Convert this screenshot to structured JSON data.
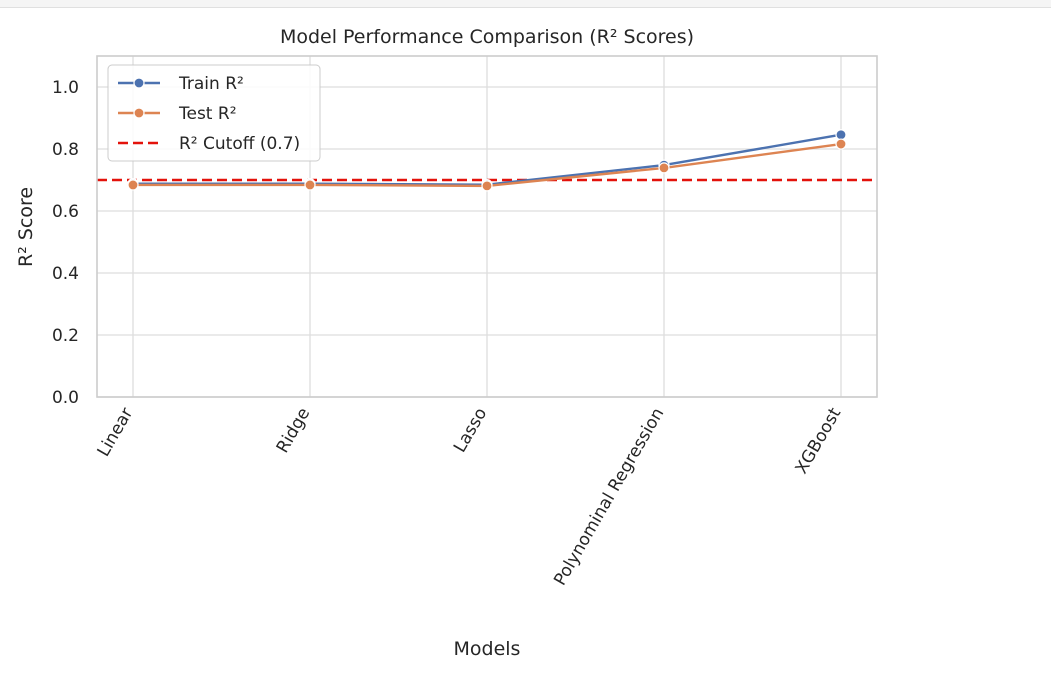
{
  "chart_data": {
    "type": "line",
    "title": "Model Performance Comparison (R² Scores)",
    "xlabel": "Models",
    "ylabel": "R² Score",
    "categories": [
      "Linear",
      "Ridge",
      "Lasso",
      "Polynominal Regression",
      "XGBoost"
    ],
    "ylim": [
      0.0,
      1.1
    ],
    "yticks": [
      "0.0",
      "0.2",
      "0.4",
      "0.6",
      "0.8",
      "1.0"
    ],
    "grid": true,
    "legend_position": "top-left",
    "series": [
      {
        "name": "Train R²",
        "color": "#4c72b0",
        "values": [
          0.688,
          0.688,
          0.685,
          0.748,
          0.846
        ]
      },
      {
        "name": "Test R²",
        "color": "#dd8452",
        "values": [
          0.684,
          0.684,
          0.681,
          0.739,
          0.816
        ]
      }
    ],
    "cutoff": {
      "name": "R² Cutoff (0.7)",
      "value": 0.7,
      "color": "#e3120b"
    }
  }
}
